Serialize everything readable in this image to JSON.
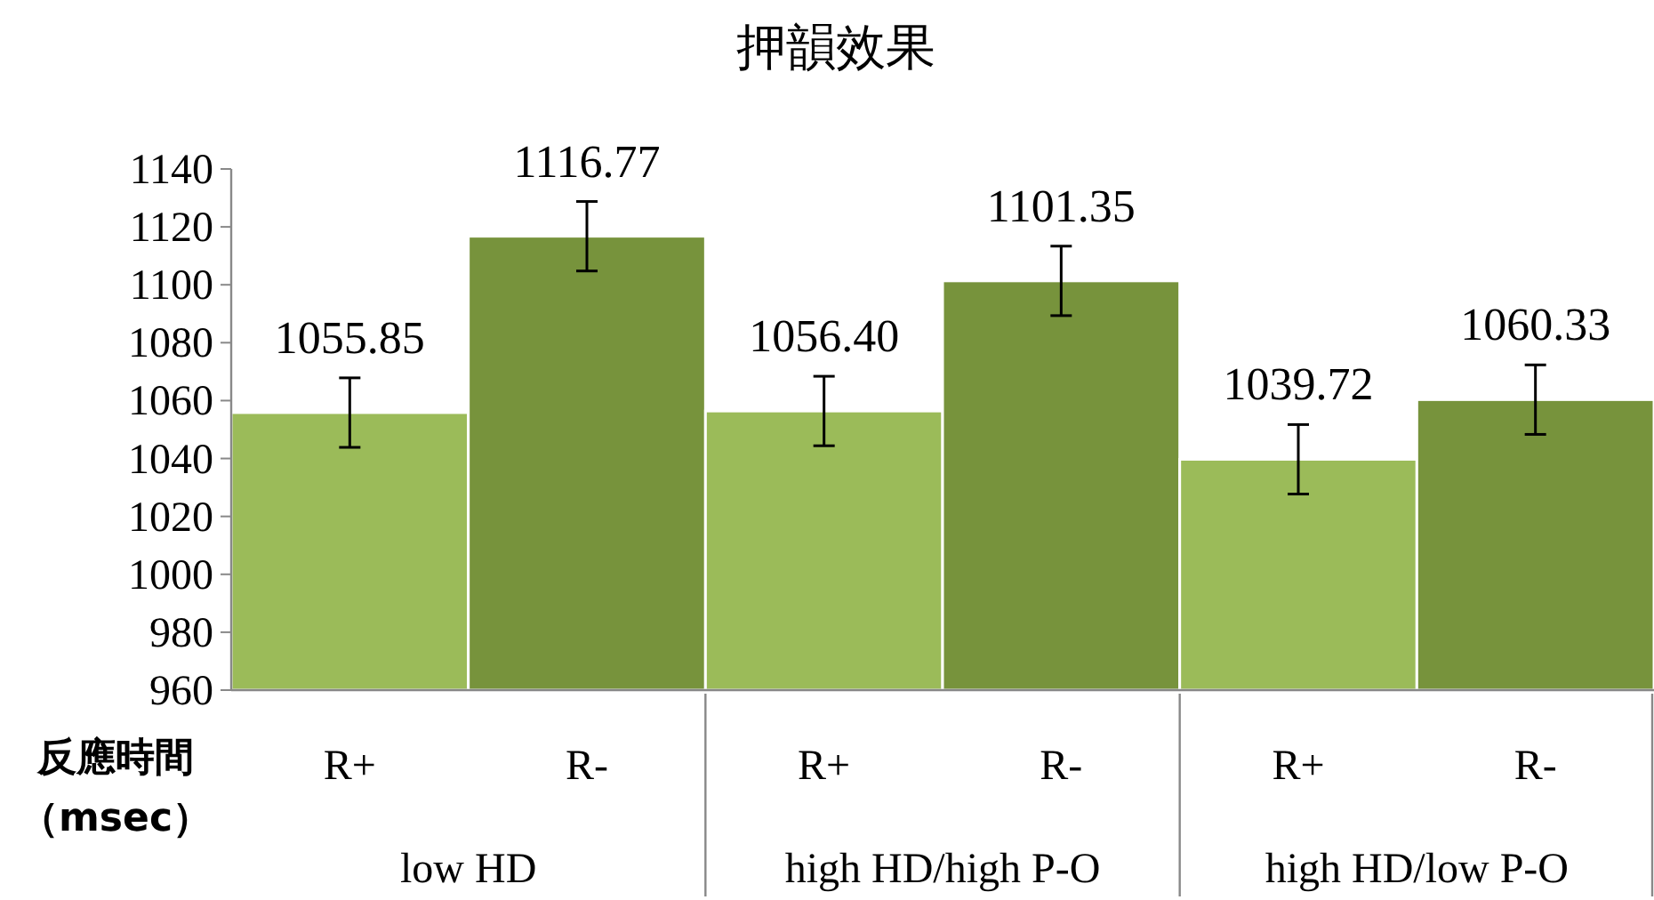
{
  "chart_data": {
    "type": "bar",
    "title": "押韻效果",
    "ylabel": "反應時間（msec）",
    "categories": [
      "R+",
      "R-",
      "R+",
      "R-",
      "R+",
      "R-"
    ],
    "values": [
      1055.85,
      1116.77,
      1056.4,
      1101.35,
      1039.72,
      1060.33
    ],
    "value_labels": [
      "1055.85",
      "1116.77",
      "1056.40",
      "1101.35",
      "1039.72",
      "1060.33"
    ],
    "colors": [
      "#9bbb59",
      "#77933c",
      "#9bbb59",
      "#77933c",
      "#9bbb59",
      "#77933c"
    ],
    "errors": [
      12,
      12,
      12,
      12,
      12,
      12
    ],
    "ylim": [
      960,
      1140
    ],
    "yticks": [
      960,
      980,
      1000,
      1020,
      1040,
      1060,
      1080,
      1100,
      1120,
      1140
    ],
    "annotations": [
      "low HD",
      "high HD/high P-O",
      "high HD/low P-O"
    ]
  }
}
